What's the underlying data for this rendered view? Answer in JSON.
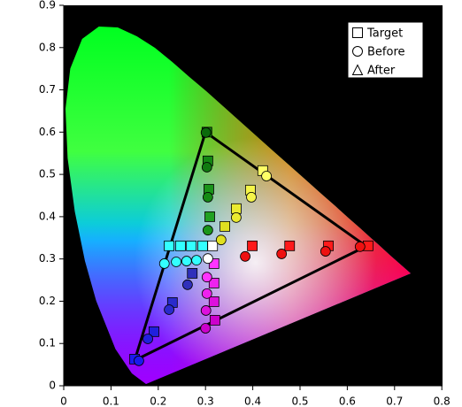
{
  "chart_data": {
    "type": "scatter",
    "xlim": [
      0,
      0.8
    ],
    "ylim": [
      0,
      0.9
    ],
    "xticks": [
      0,
      0.1,
      0.2,
      0.3,
      0.4,
      0.5,
      0.6,
      0.7,
      0.8
    ],
    "yticks": [
      0,
      0.1,
      0.2,
      0.3,
      0.4,
      0.5,
      0.6,
      0.7,
      0.8,
      0.9
    ],
    "legend": "upper right",
    "gamut": {
      "x": [
        0.64,
        0.3,
        0.15
      ],
      "y": [
        0.33,
        0.6,
        0.06
      ],
      "color": "#000000"
    },
    "series": [
      {
        "name": "Target",
        "marker": "square",
        "x": [
          0.303,
          0.305,
          0.307,
          0.309,
          0.421,
          0.395,
          0.365,
          0.341,
          0.223,
          0.247,
          0.27,
          0.294,
          0.315,
          0.399,
          0.478,
          0.56,
          0.644,
          0.15,
          0.191,
          0.23,
          0.272,
          0.318,
          0.318,
          0.318,
          0.32
        ],
        "y": [
          0.6,
          0.532,
          0.465,
          0.4,
          0.509,
          0.463,
          0.419,
          0.377,
          0.331,
          0.331,
          0.331,
          0.331,
          0.331,
          0.331,
          0.331,
          0.331,
          0.331,
          0.063,
          0.128,
          0.197,
          0.266,
          0.289,
          0.243,
          0.199,
          0.155
        ],
        "colors": [
          "#0b7a0b",
          "#138713",
          "#1a941a",
          "#21a121",
          "#ffff66",
          "#f5f54a",
          "#ebeb30",
          "#e0e020",
          "#33ffff",
          "#33ffff",
          "#33ffff",
          "#33ffff",
          "#ffffff",
          "#ff1a1a",
          "#ff1a1a",
          "#ff1a1a",
          "#ff1a1a",
          "#1a1aee",
          "#2020dd",
          "#2a2acc",
          "#3030bb",
          "#ff33ff",
          "#ee22ee",
          "#dd11dd",
          "#cc00cc"
        ]
      },
      {
        "name": "Before",
        "marker": "circle",
        "x": [
          0.301,
          0.303,
          0.305,
          0.305,
          0.429,
          0.397,
          0.365,
          0.333,
          0.213,
          0.238,
          0.26,
          0.281,
          0.305,
          0.384,
          0.461,
          0.554,
          0.627,
          0.159,
          0.178,
          0.223,
          0.262,
          0.303,
          0.303,
          0.301,
          0.3
        ],
        "y": [
          0.599,
          0.517,
          0.446,
          0.368,
          0.496,
          0.446,
          0.398,
          0.345,
          0.289,
          0.293,
          0.295,
          0.297,
          0.301,
          0.306,
          0.312,
          0.318,
          0.329,
          0.059,
          0.111,
          0.18,
          0.239,
          0.257,
          0.218,
          0.178,
          0.136
        ],
        "colors": [
          "#0b6a0b",
          "#107a10",
          "#158a15",
          "#1a961a",
          "#ffff66",
          "#f5f54a",
          "#ebeb30",
          "#e0e020",
          "#33ffff",
          "#33ffff",
          "#33ffff",
          "#33ffff",
          "#ffffff",
          "#ee1111",
          "#ee1111",
          "#ee1111",
          "#ee1111",
          "#1a1aee",
          "#2020dd",
          "#2a2acc",
          "#3030bb",
          "#ff33ff",
          "#ee22ee",
          "#dd11dd",
          "#cc00cc"
        ]
      },
      {
        "name": "After",
        "marker": "triangle",
        "x": [],
        "y": [],
        "colors": []
      }
    ]
  }
}
